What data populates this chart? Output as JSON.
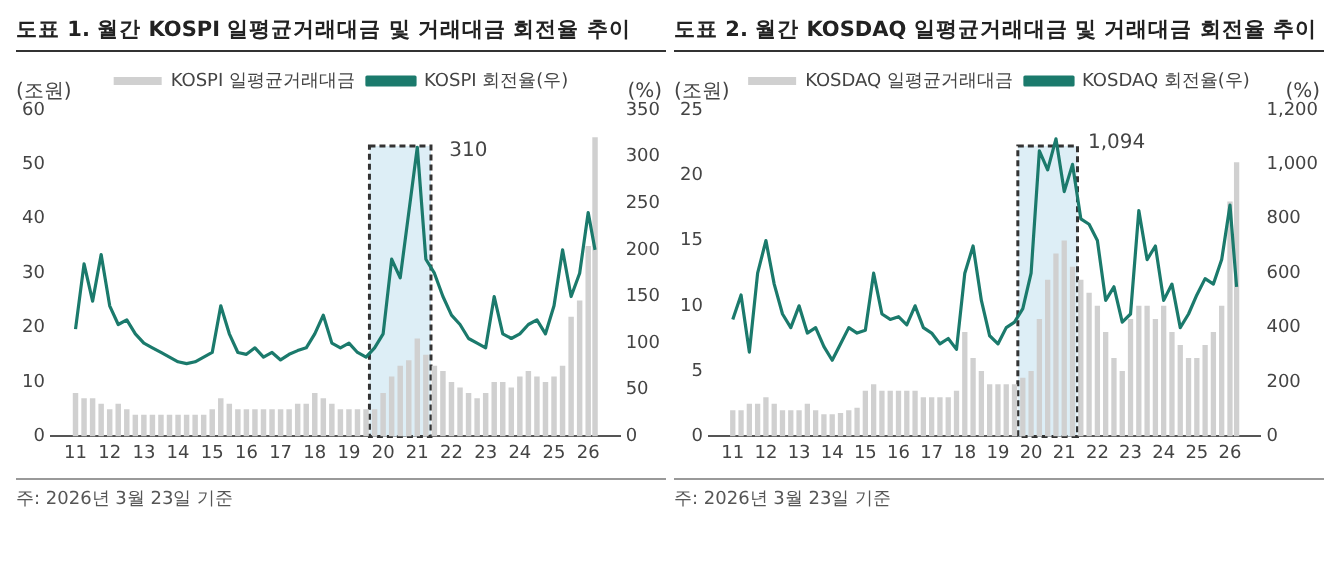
{
  "chart_data": [
    {
      "type": "bar",
      "title": "도표 1. 월간 KOSPI 일평균거래대금 및 거래대금 회전율 추이",
      "ylabel": "(조원)",
      "y2label": "(%)",
      "x": [
        2011,
        2011.25,
        2011.5,
        2011.75,
        2012,
        2012.25,
        2012.5,
        2012.75,
        2013,
        2013.25,
        2013.5,
        2013.75,
        2014,
        2014.25,
        2014.5,
        2014.75,
        2015,
        2015.25,
        2015.5,
        2015.75,
        2016,
        2016.25,
        2016.5,
        2016.75,
        2017,
        2017.25,
        2017.5,
        2017.75,
        2018,
        2018.25,
        2018.5,
        2018.75,
        2019,
        2019.25,
        2019.5,
        2019.75,
        2020,
        2020.25,
        2020.5,
        2020.75,
        2021,
        2021.25,
        2021.5,
        2021.75,
        2022,
        2022.25,
        2022.5,
        2022.75,
        2023,
        2023.25,
        2023.5,
        2023.75,
        2024,
        2024.25,
        2024.5,
        2024.75,
        2025,
        2025.25,
        2025.5,
        2025.75,
        2026,
        2026.2
      ],
      "series": [
        {
          "name": "KOSPI 일평균거래대금",
          "color": "#d0d0d0",
          "values": [
            8,
            7,
            7,
            6,
            5,
            6,
            5,
            4,
            4,
            4,
            4,
            4,
            4,
            4,
            4,
            4,
            5,
            7,
            6,
            5,
            5,
            5,
            5,
            5,
            5,
            5,
            6,
            6,
            8,
            7,
            6,
            5,
            5,
            5,
            5,
            5,
            8,
            11,
            13,
            14,
            18,
            15,
            13,
            12,
            10,
            9,
            8,
            7,
            8,
            10,
            10,
            9,
            11,
            12,
            11,
            10,
            11,
            13,
            22,
            25,
            35,
            55
          ]
        },
        {
          "name": "KOSPI 회전율(우)",
          "type": "line",
          "axis": "y2",
          "color": "#1b7a6c",
          "values": [
            115,
            185,
            145,
            195,
            140,
            120,
            125,
            110,
            100,
            95,
            90,
            85,
            80,
            78,
            80,
            85,
            90,
            140,
            110,
            90,
            88,
            95,
            85,
            90,
            82,
            88,
            92,
            95,
            110,
            130,
            100,
            95,
            100,
            90,
            85,
            95,
            110,
            190,
            170,
            240,
            310,
            190,
            175,
            150,
            130,
            120,
            105,
            100,
            95,
            150,
            110,
            105,
            110,
            120,
            125,
            110,
            140,
            200,
            150,
            175,
            240,
            200
          ]
        }
      ],
      "xlim": [
        2010.8,
        2026.4
      ],
      "xticks": [
        {
          "value": 2011,
          "label": "11"
        },
        {
          "value": 2012,
          "label": "12"
        },
        {
          "value": 2013,
          "label": "13"
        },
        {
          "value": 2014,
          "label": "14"
        },
        {
          "value": 2015,
          "label": "15"
        },
        {
          "value": 2016,
          "label": "16"
        },
        {
          "value": 2017,
          "label": "17"
        },
        {
          "value": 2018,
          "label": "18"
        },
        {
          "value": 2019,
          "label": "19"
        },
        {
          "value": 2020,
          "label": "20"
        },
        {
          "value": 2021,
          "label": "21"
        },
        {
          "value": 2022,
          "label": "22"
        },
        {
          "value": 2023,
          "label": "23"
        },
        {
          "value": 2024,
          "label": "24"
        },
        {
          "value": 2025,
          "label": "25"
        },
        {
          "value": 2026,
          "label": "26"
        }
      ],
      "ylim": [
        0,
        60
      ],
      "yticks": [
        0,
        10,
        20,
        30,
        40,
        50,
        60
      ],
      "y2lim": [
        0,
        350
      ],
      "y2ticks": [
        0,
        50,
        100,
        150,
        200,
        250,
        300,
        350
      ],
      "bands": [
        {
          "axis": "x",
          "from": 2019.6,
          "to": 2021.4,
          "color": "#ddeef6"
        }
      ],
      "annotations": [
        "310",
        "주: 2026년 3월 23일 기준"
      ],
      "legend": "top",
      "grid": false
    },
    {
      "type": "bar",
      "title": "도표 2. 월간 KOSDAQ 일평균거래대금 및 거래대금 회전율 추이",
      "ylabel": "(조원)",
      "y2label": "(%)",
      "x": [
        2011,
        2011.25,
        2011.5,
        2011.75,
        2012,
        2012.25,
        2012.5,
        2012.75,
        2013,
        2013.25,
        2013.5,
        2013.75,
        2014,
        2014.25,
        2014.5,
        2014.75,
        2015,
        2015.25,
        2015.5,
        2015.75,
        2016,
        2016.25,
        2016.5,
        2016.75,
        2017,
        2017.25,
        2017.5,
        2017.75,
        2018,
        2018.25,
        2018.5,
        2018.75,
        2019,
        2019.25,
        2019.5,
        2019.75,
        2020,
        2020.25,
        2020.5,
        2020.75,
        2021,
        2021.25,
        2021.5,
        2021.75,
        2022,
        2022.25,
        2022.5,
        2022.75,
        2023,
        2023.25,
        2023.5,
        2023.75,
        2024,
        2024.25,
        2024.5,
        2024.75,
        2025,
        2025.25,
        2025.5,
        2025.75,
        2026,
        2026.2
      ],
      "series": [
        {
          "name": "KOSDAQ 일평균거래대금",
          "color": "#d0d0d0",
          "values": [
            2,
            2,
            2.5,
            2.5,
            3,
            2.5,
            2,
            2,
            2,
            2.5,
            2,
            1.7,
            1.7,
            1.8,
            2,
            2.2,
            3.5,
            4,
            3.5,
            3.5,
            3.5,
            3.5,
            3.5,
            3,
            3,
            3,
            3,
            3.5,
            8,
            6,
            5,
            4,
            4,
            4,
            4,
            4.5,
            5,
            9,
            12,
            14,
            15,
            13,
            12,
            11,
            10,
            8,
            6,
            5,
            9,
            10,
            10,
            9,
            10,
            8,
            7,
            6,
            6,
            7,
            8,
            10,
            18,
            21
          ]
        },
        {
          "name": "KOSDAQ 회전율(우)",
          "type": "line",
          "axis": "y2",
          "color": "#1b7a6c",
          "values": [
            430,
            520,
            310,
            600,
            720,
            560,
            450,
            400,
            480,
            380,
            400,
            330,
            280,
            340,
            400,
            380,
            390,
            600,
            450,
            430,
            440,
            410,
            480,
            400,
            380,
            340,
            360,
            320,
            600,
            700,
            500,
            370,
            340,
            400,
            420,
            470,
            600,
            1050,
            980,
            1094,
            900,
            1000,
            800,
            780,
            720,
            500,
            550,
            420,
            450,
            830,
            650,
            700,
            500,
            560,
            400,
            450,
            520,
            580,
            560,
            650,
            850,
            550
          ]
        }
      ],
      "xlim": [
        2010.8,
        2026.4
      ],
      "xticks": [
        {
          "value": 2011,
          "label": "11"
        },
        {
          "value": 2012,
          "label": "12"
        },
        {
          "value": 2013,
          "label": "13"
        },
        {
          "value": 2014,
          "label": "14"
        },
        {
          "value": 2015,
          "label": "15"
        },
        {
          "value": 2016,
          "label": "16"
        },
        {
          "value": 2017,
          "label": "17"
        },
        {
          "value": 2018,
          "label": "18"
        },
        {
          "value": 2019,
          "label": "19"
        },
        {
          "value": 2020,
          "label": "20"
        },
        {
          "value": 2021,
          "label": "21"
        },
        {
          "value": 2022,
          "label": "22"
        },
        {
          "value": 2023,
          "label": "23"
        },
        {
          "value": 2024,
          "label": "24"
        },
        {
          "value": 2025,
          "label": "25"
        },
        {
          "value": 2026,
          "label": "26"
        }
      ],
      "ylim": [
        0,
        25
      ],
      "yticks": [
        0,
        5,
        10,
        15,
        20,
        25
      ],
      "y2lim": [
        0,
        1200
      ],
      "y2ticks": [
        0,
        200,
        400,
        600,
        800,
        {
          "value": 1000,
          "label": "1,000"
        },
        {
          "value": 1200,
          "label": "1,200"
        }
      ],
      "bands": [
        {
          "axis": "x",
          "from": 2019.6,
          "to": 2021.4,
          "color": "#ddeef6"
        }
      ],
      "annotations": [
        "1,094",
        "주: 2026년 3월 23일 기준"
      ],
      "legend": "top",
      "grid": false
    }
  ]
}
